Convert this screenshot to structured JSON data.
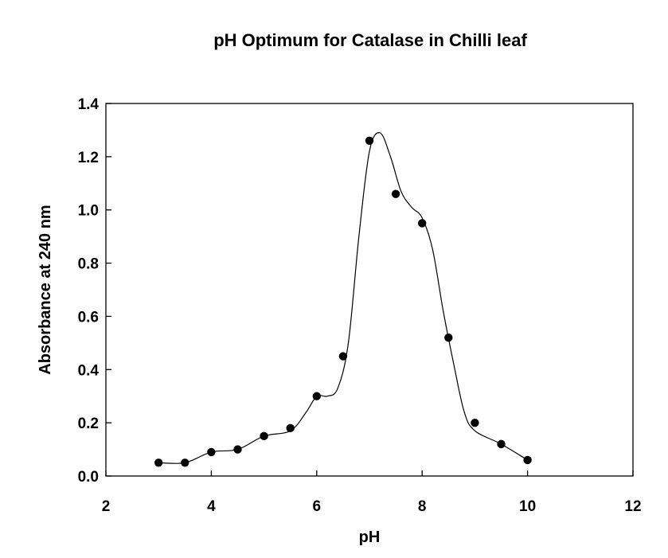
{
  "chart_data": {
    "type": "scatter",
    "title": "pH Optimum for Catalase in Chilli leaf",
    "xlabel": "pH",
    "ylabel": "Absorbance at 240 nm",
    "xlim": [
      2,
      12
    ],
    "ylim": [
      0.0,
      1.4
    ],
    "x_ticks": [
      2,
      4,
      6,
      8,
      10,
      12
    ],
    "y_ticks": [
      0.0,
      0.2,
      0.4,
      0.6,
      0.8,
      1.0,
      1.2,
      1.4
    ],
    "x_tick_labels": [
      "2",
      "4",
      "6",
      "8",
      "10",
      "12"
    ],
    "y_tick_labels": [
      "0.0",
      "0.2",
      "0.4",
      "0.6",
      "0.8",
      "1.0",
      "1.2",
      "1.4"
    ],
    "grid": false,
    "legend": "none",
    "series": [
      {
        "name": "Absorbance",
        "marker": "filled-circle",
        "line": "smooth",
        "color": "#000000",
        "x": [
          3.0,
          3.5,
          4.0,
          4.5,
          5.0,
          5.5,
          6.0,
          6.5,
          7.0,
          7.5,
          8.0,
          8.5,
          9.0,
          9.5,
          10.0
        ],
        "y": [
          0.05,
          0.05,
          0.09,
          0.1,
          0.15,
          0.18,
          0.3,
          0.45,
          1.26,
          1.06,
          0.95,
          0.52,
          0.2,
          0.12,
          0.06
        ]
      }
    ],
    "fitted_curve": {
      "name": "smooth fit",
      "x": [
        3.0,
        3.5,
        4.0,
        4.5,
        5.0,
        5.5,
        5.8,
        6.0,
        6.2,
        6.4,
        6.6,
        6.8,
        7.0,
        7.2,
        7.4,
        7.6,
        7.8,
        8.0,
        8.2,
        8.4,
        8.6,
        8.8,
        9.0,
        9.5,
        10.0
      ],
      "y": [
        0.05,
        0.05,
        0.09,
        0.1,
        0.15,
        0.17,
        0.24,
        0.3,
        0.3,
        0.33,
        0.5,
        0.9,
        1.22,
        1.29,
        1.2,
        1.07,
        1.01,
        0.97,
        0.85,
        0.62,
        0.42,
        0.24,
        0.17,
        0.12,
        0.06
      ]
    }
  }
}
